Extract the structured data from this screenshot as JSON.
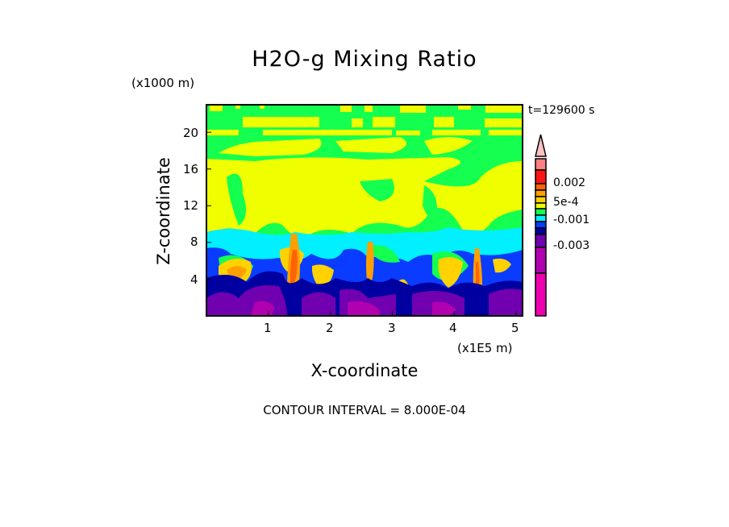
{
  "chart_data": {
    "type": "heatmap",
    "subtype": "filled-contour",
    "title": "H2O-g Mixing Ratio",
    "xlabel": "X-coordinate",
    "ylabel": "Z-coordinate",
    "x_unit": "(x1E5 m)",
    "y_unit": "(x1000 m)",
    "time_label": "t=129600 s",
    "footer": "CONTOUR INTERVAL = 8.000E-04",
    "xlim": [
      0,
      5.1
    ],
    "ylim": [
      0,
      23
    ],
    "x_ticks": [
      "1",
      "2",
      "3",
      "4",
      "5"
    ],
    "x_tick_values": [
      1,
      2,
      3,
      4,
      5
    ],
    "y_ticks": [
      "4",
      "8",
      "12",
      "16",
      "20"
    ],
    "y_tick_values": [
      4,
      8,
      12,
      16,
      20
    ],
    "colorbar_labels": [
      "0.002",
      "5e-4",
      "-0.001",
      "-0.003"
    ],
    "colorbar_colors": [
      "#ffc0c0",
      "#ff8080",
      "#ff1414",
      "#ff6400",
      "#ffa000",
      "#ffd200",
      "#f0ff00",
      "#14ff50",
      "#00f0ff",
      "#0a3cff",
      "#0000a0",
      "#7000b0",
      "#b000b0",
      "#ee00b0"
    ]
  }
}
